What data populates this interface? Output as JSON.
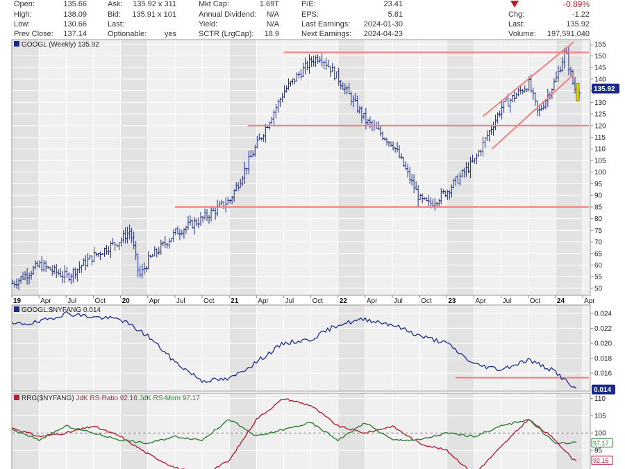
{
  "header": {
    "quote_rows": [
      {
        "label": "Open:",
        "value": "135.66"
      },
      {
        "label": "High:",
        "value": "138.09"
      },
      {
        "label": "Low:",
        "value": "130.66"
      },
      {
        "label": "Prev Close:",
        "value": "137.14"
      }
    ],
    "bidask_rows": [
      {
        "label": "Ask:",
        "value": "135.92 x 311"
      },
      {
        "label": "Bid:",
        "value": "135.91 x 101"
      },
      {
        "label": "Last:",
        "value": ""
      },
      {
        "label": "Optionable:",
        "value": "yes"
      }
    ],
    "cap_rows": [
      {
        "label": "Mkt Cap:",
        "value": "1.69T"
      },
      {
        "label": "Annual Dividend:",
        "value": "N/A"
      },
      {
        "label": "Yield:",
        "value": "N/A"
      },
      {
        "label": "SCTR (LrgCap):",
        "value": "18.9"
      }
    ],
    "earn_rows": [
      {
        "label": "P/E:",
        "value": "23.41"
      },
      {
        "label": "EPS:",
        "value": "5.81"
      },
      {
        "label": "Last Earnings:",
        "value": "2024-01-30"
      },
      {
        "label": "Next Earnings:",
        "value": "2024-04-23"
      }
    ],
    "change_pct": "-0.89%",
    "change_rows": [
      {
        "label": "Chg:",
        "value": "-1.22"
      },
      {
        "label": "Last:",
        "value": "135.92"
      },
      {
        "label": "Volume:",
        "value": "197,591,040"
      }
    ]
  },
  "chart_data": [
    {
      "type": "line",
      "subtype": "ohlc-bar",
      "title": "GOOGL (Weekly) 135.92",
      "last_value_tag": "135.92",
      "x_tick_labels": [
        "19",
        "Apr",
        "Jul",
        "Oct",
        "20",
        "Apr",
        "Jul",
        "Oct",
        "21",
        "Apr",
        "Jul",
        "Oct",
        "22",
        "Apr",
        "Jul",
        "Oct",
        "23",
        "Apr",
        "Jul",
        "Oct",
        "24",
        "Apr"
      ],
      "y_ticks": [
        50,
        55,
        60,
        65,
        70,
        75,
        80,
        85,
        90,
        95,
        100,
        105,
        110,
        115,
        120,
        125,
        130,
        135,
        140,
        145,
        150,
        155
      ],
      "ylim": [
        47,
        157
      ],
      "series": [
        {
          "x": [
            "2019-01",
            "2019-04",
            "2019-07",
            "2019-10",
            "2020-01",
            "2020-02",
            "2020-03",
            "2020-04",
            "2020-07",
            "2020-10",
            "2021-01",
            "2021-04",
            "2021-07",
            "2021-10",
            "2021-11",
            "2022-01",
            "2022-04",
            "2022-07",
            "2022-10",
            "2022-11",
            "2023-01",
            "2023-04",
            "2023-07",
            "2023-10",
            "2023-11",
            "2024-01",
            "2024-02",
            "2024-03"
          ],
          "values": [
            52,
            60,
            55,
            64,
            71,
            75,
            55,
            62,
            74,
            80,
            88,
            112,
            135,
            148,
            150,
            140,
            122,
            112,
            88,
            86,
            92,
            105,
            128,
            138,
            125,
            140,
            152,
            135.92
          ]
        }
      ],
      "overlays": [
        {
          "type": "horizontal",
          "value": 151.5
        },
        {
          "type": "horizontal",
          "value": 120
        },
        {
          "type": "horizontal",
          "value": 85
        },
        {
          "type": "channel",
          "upper": {
            "from": [
              "2023-05",
              124
            ],
            "to": [
              "2024-03",
              156
            ]
          },
          "lower": {
            "from": [
              "2023-06",
              110
            ],
            "to": [
              "2024-03",
              142
            ]
          }
        }
      ],
      "grid": true
    },
    {
      "type": "line",
      "title": "GOOGL:$NYFANG 0.014",
      "last_value_tag": "0.014",
      "y_ticks": [
        0.016,
        0.018,
        0.02,
        0.022,
        0.024
      ],
      "ylim": [
        0.0136,
        0.0251
      ],
      "series": [
        {
          "x": [
            "2019-01",
            "2019-04",
            "2019-07",
            "2019-10",
            "2020-01",
            "2020-04",
            "2020-07",
            "2020-10",
            "2021-01",
            "2021-04",
            "2021-07",
            "2021-10",
            "2022-01",
            "2022-04",
            "2022-07",
            "2022-10",
            "2023-01",
            "2023-04",
            "2023-07",
            "2023-10",
            "2024-01",
            "2024-03"
          ],
          "values": [
            0.0225,
            0.0228,
            0.024,
            0.0235,
            0.0232,
            0.021,
            0.0175,
            0.015,
            0.0152,
            0.0175,
            0.02,
            0.0205,
            0.0225,
            0.0232,
            0.0225,
            0.021,
            0.02,
            0.0172,
            0.0165,
            0.0178,
            0.0162,
            0.014
          ]
        }
      ],
      "overlays": [
        {
          "type": "horizontal",
          "value": 0.0154,
          "from": "2023-02"
        }
      ],
      "grid": true
    },
    {
      "type": "line",
      "title_parts": [
        "RRG($NYFANG) ",
        "JdK RS-Ratio 92.16 ",
        "JdK RS-Mom 97.17"
      ],
      "y_ticks": [
        95,
        100,
        105,
        110
      ],
      "ylim": [
        89,
        111.5
      ],
      "reference_line": 100,
      "last_value_tags": [
        "97.17",
        "92.16"
      ],
      "series": [
        {
          "name": "JdK RS-Ratio",
          "color": "#b0203a",
          "x": [
            "2019-01",
            "2019-04",
            "2019-07",
            "2019-10",
            "2020-01",
            "2020-04",
            "2020-07",
            "2020-10",
            "2021-01",
            "2021-04",
            "2021-07",
            "2021-10",
            "2022-01",
            "2022-04",
            "2022-07",
            "2022-10",
            "2023-01",
            "2023-04",
            "2023-07",
            "2023-10",
            "2024-01",
            "2024-03"
          ],
          "values": [
            101.5,
            99,
            100,
            102,
            99,
            94,
            90,
            88,
            92,
            104,
            110,
            108,
            102,
            100,
            102,
            97,
            95,
            88,
            96,
            104,
            98,
            92.16
          ]
        },
        {
          "name": "JdK RS-Mom",
          "color": "#2e7d32",
          "x": [
            "2019-01",
            "2019-04",
            "2019-07",
            "2019-10",
            "2020-01",
            "2020-04",
            "2020-07",
            "2020-10",
            "2021-01",
            "2021-04",
            "2021-07",
            "2021-10",
            "2022-01",
            "2022-04",
            "2022-07",
            "2022-10",
            "2023-01",
            "2023-04",
            "2023-07",
            "2023-10",
            "2024-01",
            "2024-03"
          ],
          "values": [
            101,
            98,
            102,
            100,
            98,
            97,
            99,
            98,
            104,
            99,
            101,
            103,
            98,
            103,
            98,
            98,
            100,
            99,
            102,
            104,
            97,
            97.17
          ]
        }
      ],
      "grid": true
    }
  ],
  "colors": {
    "price_bar": "#1a2a8a",
    "relative_line": "#1a2a8a",
    "trendline": "#f08080",
    "panel_bg": "#f0f0f0",
    "alt_bg": "#e2e2e2",
    "gridline": "#ffffff",
    "last_tag_bg": "#1a2a8a",
    "current_bar_highlight": "#e8d800",
    "down_triangle": "#b8202a"
  }
}
